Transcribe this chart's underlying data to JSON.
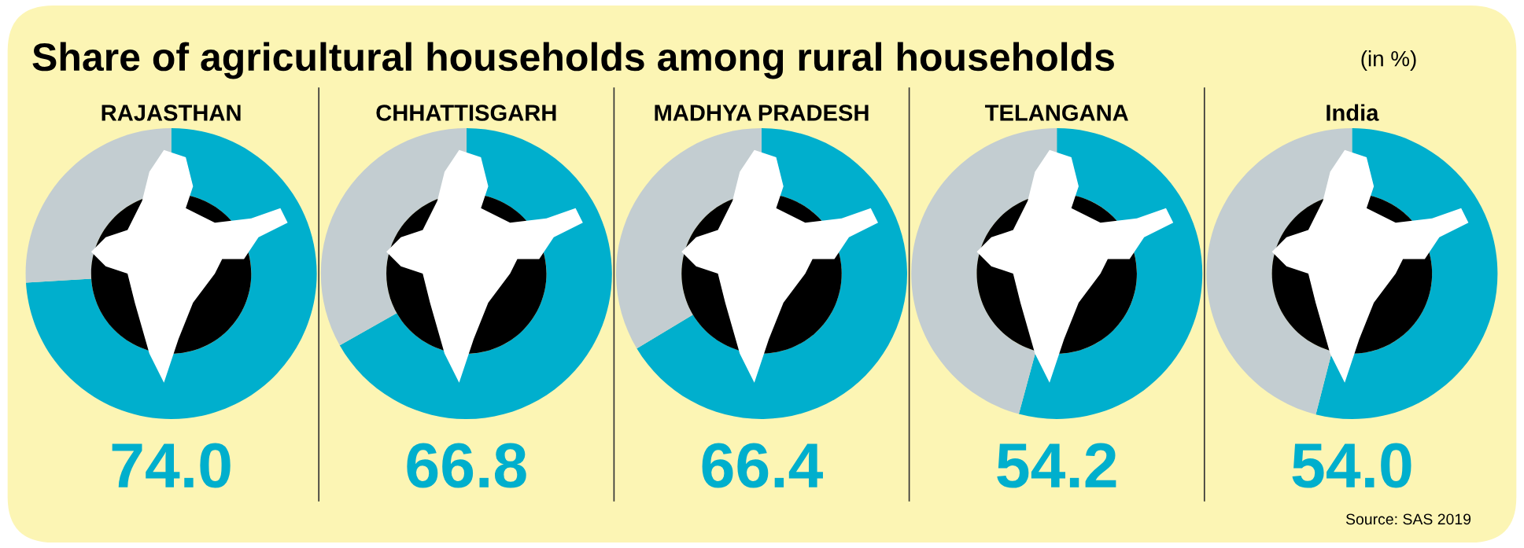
{
  "chart_data": [
    {
      "type": "donut",
      "title": "RAJASTHAN",
      "categories": [
        null,
        null
      ],
      "values": [
        74.0,
        26.0
      ],
      "colors": [
        "#00afcd",
        "#c3cdd1"
      ],
      "value_labels": [
        "74.0",
        null
      ],
      "annotations": [
        "Share of agricultural households among rural households",
        "(in %)"
      ]
    },
    {
      "type": "donut",
      "title": "CHHATTISGARH",
      "categories": [
        null,
        null
      ],
      "values": [
        66.8,
        33.2
      ],
      "colors": [
        "#00afcd",
        "#c3cdd1"
      ],
      "value_labels": [
        "66.8",
        null
      ]
    },
    {
      "type": "donut",
      "title": "MADHYA PRADESH",
      "categories": [
        null,
        null
      ],
      "values": [
        66.4,
        33.6
      ],
      "colors": [
        "#00afcd",
        "#c3cdd1"
      ],
      "value_labels": [
        "66.4",
        null
      ]
    },
    {
      "type": "donut",
      "title": "TELANGANA",
      "categories": [
        null,
        null
      ],
      "values": [
        54.2,
        45.8
      ],
      "colors": [
        "#00afcd",
        "#c3cdd1"
      ],
      "value_labels": [
        "54.2",
        null
      ]
    },
    {
      "type": "donut",
      "title": "India",
      "categories": [
        null,
        null
      ],
      "values": [
        54.0,
        46.0
      ],
      "colors": [
        "#00afcd",
        "#c3cdd1"
      ],
      "value_labels": [
        "54.0",
        null
      ],
      "annotations": [
        "Source: SAS 2019"
      ]
    }
  ]
}
